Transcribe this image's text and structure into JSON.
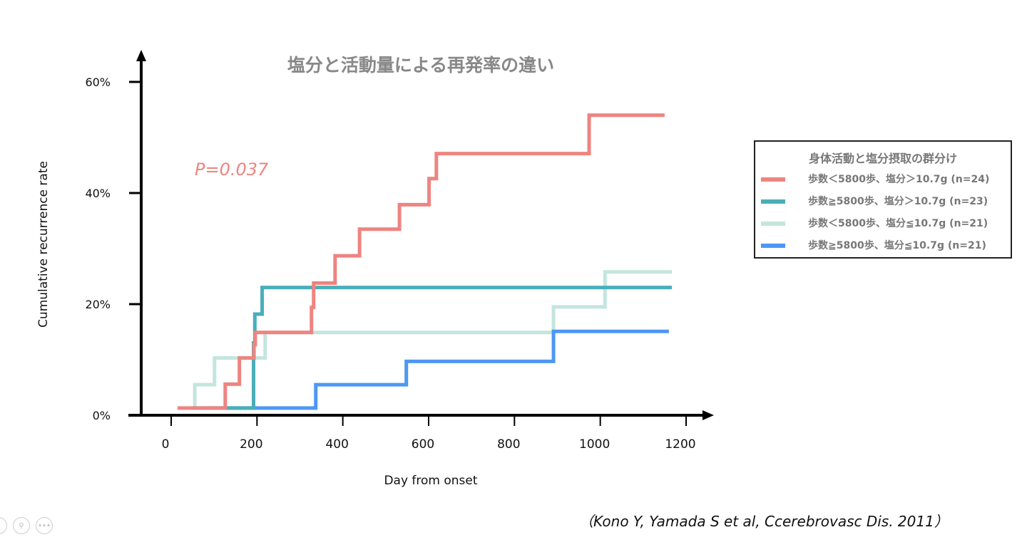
{
  "chart_data": {
    "type": "line",
    "step": true,
    "title": "塩分と活動量による再発率の違い",
    "xlabel": "Day from onset",
    "ylabel": "Cumulative recurrence rate",
    "xlim": [
      0,
      1200
    ],
    "ylim": [
      0,
      60
    ],
    "xticks": [
      "0",
      "200",
      "400",
      "600",
      "800",
      "1000",
      "1200"
    ],
    "yticks": [
      "0%",
      "20%",
      "40%",
      "60%"
    ],
    "annotation": "P=0.037",
    "legend_title": "身体活動と塩分摂取の群分け",
    "legend_position": "right",
    "series": [
      {
        "name": "歩数＜5800歩、塩分＞10.7g (n=24)",
        "color": "#ee8480",
        "x": [
          15,
          126,
          159,
          193,
          196,
          327,
          332,
          382,
          439,
          532,
          601,
          618,
          974,
          1150
        ],
        "y": [
          1.3,
          5.6,
          10.3,
          12.7,
          14.9,
          19.4,
          23.8,
          28.7,
          33.5,
          37.9,
          42.6,
          47.1,
          54,
          54
        ]
      },
      {
        "name": "歩数≧5800歩、塩分＞10.7g (n=23)",
        "color": "#4aaeb8",
        "x": [
          85,
          192,
          195,
          212,
          1167
        ],
        "y": [
          1.3,
          13,
          18.2,
          23,
          23
        ]
      },
      {
        "name": "歩数＜5800歩、塩分≦10.7g (n=21)",
        "color": "#c3e5de",
        "x": [
          55,
          101,
          219,
          891,
          1011,
          1167
        ],
        "y": [
          5.5,
          10.3,
          14.9,
          19.5,
          25.8,
          25.8
        ]
      },
      {
        "name": "歩数≧5800歩、塩分≦10.7g (n=21)",
        "color": "#4d97f5",
        "x": [
          50,
          337,
          548,
          891,
          1160
        ],
        "y": [
          1.3,
          5.5,
          9.7,
          15.1,
          15.1
        ]
      }
    ]
  },
  "citation": "（Kono Y, Yamada S et al, Ccerebrovasc Dis. 2011）"
}
